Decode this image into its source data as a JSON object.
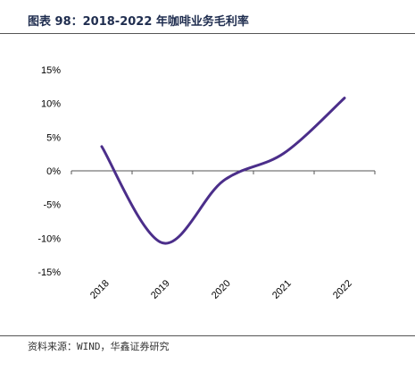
{
  "header": {
    "title": "图表 98：2018-2022 年咖啡业务毛利率"
  },
  "footer": {
    "source": "资料来源：WIND，华鑫证券研究"
  },
  "colors": {
    "line": "#4b2e8a",
    "axis": "#555555",
    "rule": "#555555"
  },
  "chart_data": {
    "type": "line",
    "title": "2018-2022 年咖啡业务毛利率",
    "categories": [
      "2018",
      "2019",
      "2020",
      "2021",
      "2022"
    ],
    "series": [
      {
        "values": [
          3.6,
          -10.7,
          -1.5,
          2.6,
          10.8
        ]
      }
    ],
    "ylim": [
      -15,
      15
    ],
    "yticks": [
      15,
      10,
      5,
      0,
      -5,
      -10,
      -15
    ],
    "ytick_labels": [
      "15%",
      "10%",
      "5%",
      "0%",
      "-5%",
      "-10%",
      "-15%"
    ],
    "smooth": true,
    "grid": false,
    "legend": "none"
  }
}
